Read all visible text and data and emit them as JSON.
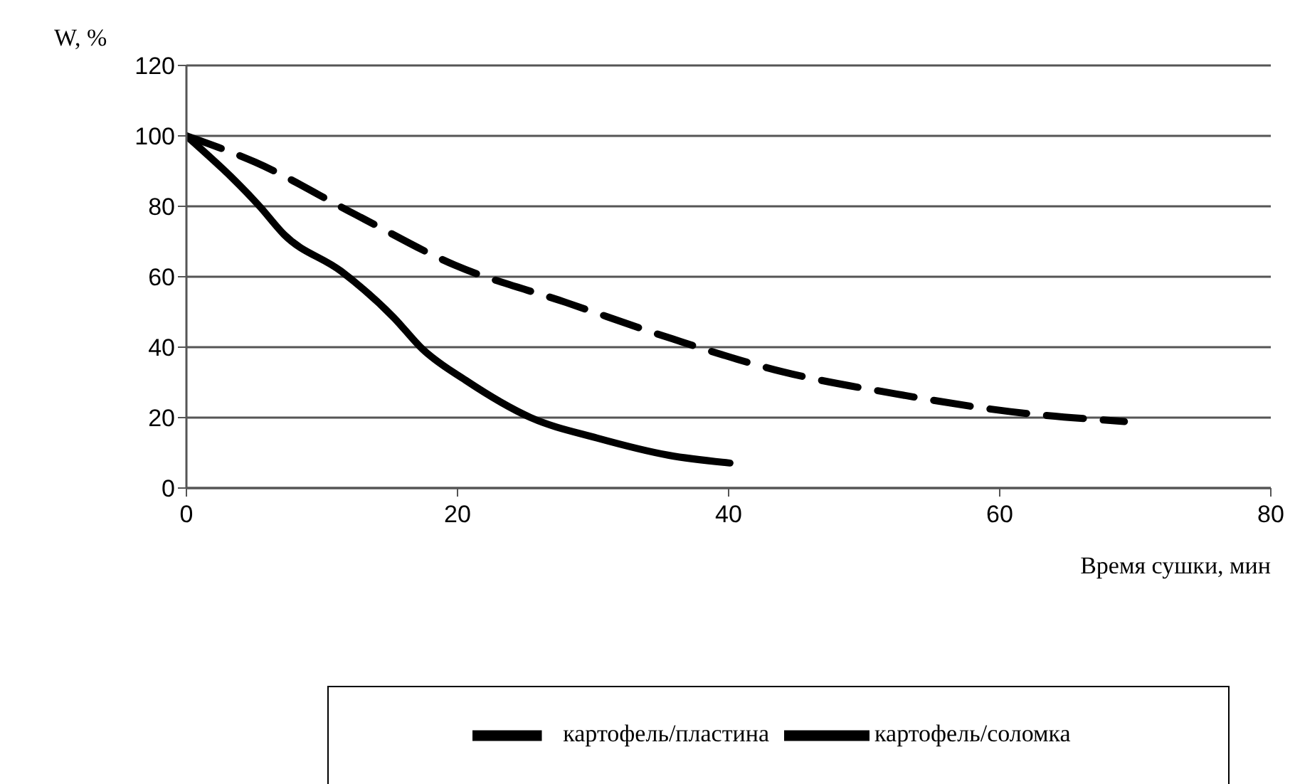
{
  "chart_data": {
    "type": "line",
    "xlabel": "Время сушки, мин",
    "ylabel": "W, %",
    "xlim": [
      0,
      80
    ],
    "xticks": [
      0,
      20,
      40,
      60,
      80
    ],
    "ylim": [
      0,
      120
    ],
    "yticks": [
      0,
      20,
      40,
      60,
      80,
      100,
      120
    ],
    "grid": "y",
    "legend": "bottom",
    "marker": "none",
    "series": [
      {
        "name": "картофель/соломка",
        "color": "#000000",
        "line_style": "solid",
        "x": [
          0,
          5.4,
          7.2,
          11.4,
          15.3,
          17.4,
          20.6,
          25.4,
          30.3,
          35.6,
          40.1
        ],
        "values": [
          100,
          80,
          72,
          61.6,
          48.4,
          39.5,
          30.6,
          20,
          14.2,
          9.3,
          7.1
        ]
      },
      {
        "name": "картофель/пластина",
        "color": "#000000",
        "line_style": "dashed",
        "x": [
          0,
          5.1,
          12.5,
          19.8,
          28,
          35.9,
          44,
          52.4,
          60.8,
          69.2
        ],
        "values": [
          100,
          92.5,
          77.6,
          63.3,
          52.7,
          42.3,
          33,
          26.7,
          21.7,
          18.9
        ]
      }
    ]
  }
}
